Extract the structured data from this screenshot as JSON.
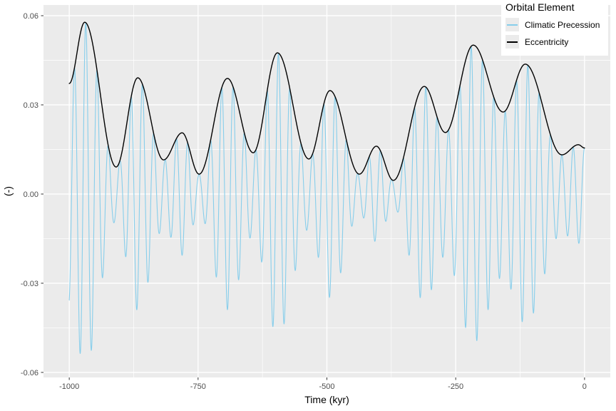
{
  "chart_data": {
    "type": "line",
    "title": "",
    "xlabel": "Time (kyr)",
    "ylabel": "(-)",
    "xlim": [
      -1050,
      50
    ],
    "ylim": [
      -0.0617,
      0.0636
    ],
    "x_data_range": [
      -1000,
      0
    ],
    "x_major_ticks": [
      -1000,
      -750,
      -500,
      -250,
      0
    ],
    "x_tick_labels": [
      "-1000",
      "-750",
      "-500",
      "-250",
      "0"
    ],
    "x_minor_ticks": [
      -875,
      -625,
      -375,
      -125
    ],
    "y_major_ticks": [
      -0.06,
      -0.03,
      0,
      0.03,
      0.06
    ],
    "y_tick_labels": [
      "-0.06",
      "-0.03",
      "0.00",
      "0.03",
      "0.06"
    ],
    "y_minor_ticks": [
      -0.045,
      -0.015,
      0.015,
      0.045
    ],
    "grid": true,
    "legend_position": "top-right",
    "colors": {
      "panel_background": "#EBEBEB",
      "grid": "#FFFFFF",
      "tick_label": "#4D4D4D",
      "tick_mark": "#333333",
      "axis_title": "#000000",
      "precession": "#87CEEB",
      "eccentricity": "#000000"
    },
    "series": [
      {
        "name": "Climatic Precession",
        "color": "#87CEEB",
        "model": "envelope_modulated_sine",
        "period_kyr": 22,
        "phase_at_zero_deg": 90,
        "sample_step_kyr": 0.25
      },
      {
        "name": "Eccentricity",
        "color": "#000000",
        "model": "envelope",
        "sample_step_kyr": 1
      }
    ],
    "eccentricity_extrema_points": [
      [
        -1000,
        0.0372
      ],
      [
        -970,
        0.0578
      ],
      [
        -909,
        0.0091
      ],
      [
        -867,
        0.0391
      ],
      [
        -817,
        0.0115
      ],
      [
        -781,
        0.0206
      ],
      [
        -748,
        0.0067
      ],
      [
        -693,
        0.0389
      ],
      [
        -643,
        0.0139
      ],
      [
        -596,
        0.0475
      ],
      [
        -535,
        0.0118
      ],
      [
        -494,
        0.0348
      ],
      [
        -437,
        0.0067
      ],
      [
        -404,
        0.0161
      ],
      [
        -371,
        0.0046
      ],
      [
        -311,
        0.0362
      ],
      [
        -270,
        0.0207
      ],
      [
        -216,
        0.0501
      ],
      [
        -158,
        0.0276
      ],
      [
        -115,
        0.0437
      ],
      [
        -44,
        0.0132
      ],
      [
        -12,
        0.0166
      ],
      [
        0,
        0.0155
      ]
    ],
    "legend": {
      "title": "Orbital Element",
      "entries": [
        {
          "label": "Climatic Precession",
          "color": "#87CEEB"
        },
        {
          "label": "Eccentricity",
          "color": "#000000"
        }
      ]
    }
  }
}
